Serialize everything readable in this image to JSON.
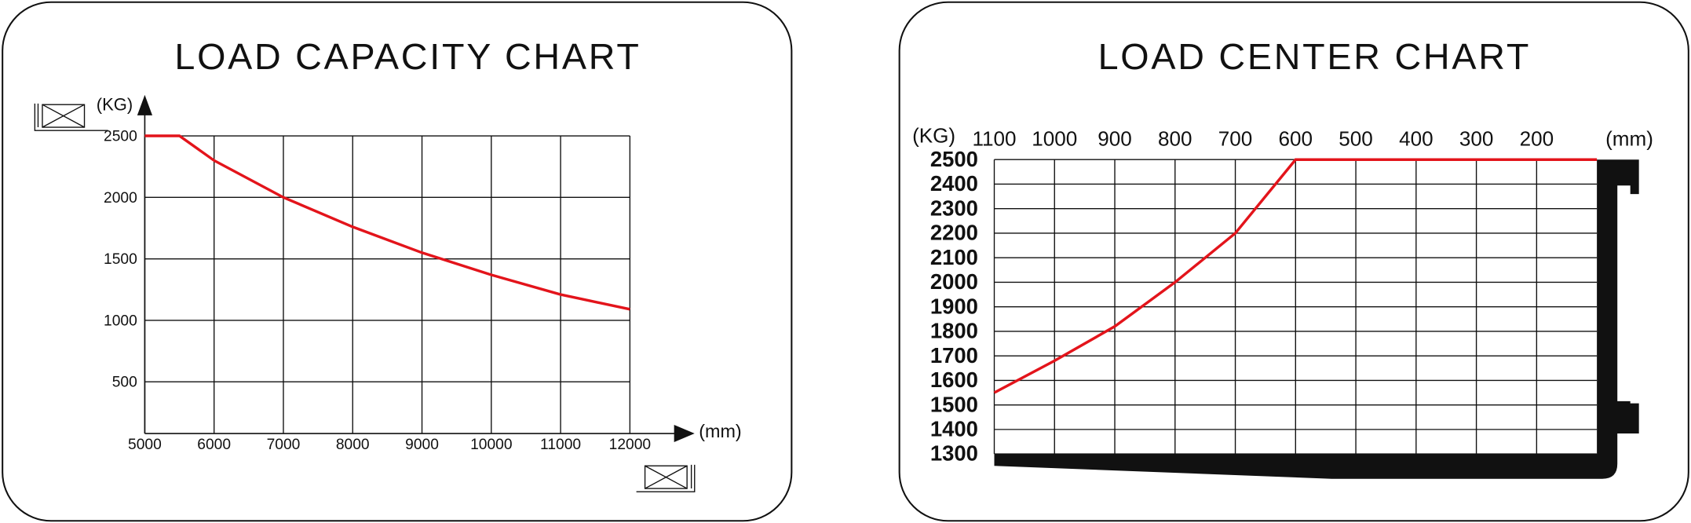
{
  "chart_data": [
    {
      "type": "line",
      "title": "LOAD CAPACITY CHART",
      "y_label": "(KG)",
      "x_label": "(mm)",
      "x": [
        5000,
        5500,
        6000,
        7000,
        8000,
        9000,
        10000,
        11000,
        12000
      ],
      "values": [
        2500,
        2500,
        2300,
        2000,
        1760,
        1550,
        1370,
        1210,
        1090
      ],
      "color": "#e3141b",
      "xlim": [
        5000,
        12000
      ],
      "ylim": [
        80,
        2500
      ],
      "xticks": [
        5000,
        6000,
        7000,
        8000,
        9000,
        10000,
        11000,
        12000
      ],
      "yticks": [
        500,
        1000,
        1500,
        2000,
        2500
      ],
      "grid": true,
      "x_axis_position": "bottom"
    },
    {
      "type": "line",
      "title": "LOAD CENTER CHART",
      "y_label": "(KG)",
      "x_label": "(mm)",
      "x": [
        1100,
        1000,
        900,
        800,
        700,
        600,
        500,
        400,
        300,
        200,
        100
      ],
      "values": [
        1550,
        1680,
        1820,
        2000,
        2200,
        2500,
        2500,
        2500,
        2500,
        2500,
        2500
      ],
      "color": "#e3141b",
      "xlim": [
        1100,
        100
      ],
      "ylim": [
        1300,
        2500
      ],
      "xticks": [
        1100,
        1000,
        900,
        800,
        700,
        600,
        500,
        400,
        300,
        200
      ],
      "yticks": [
        1300,
        1400,
        1500,
        1600,
        1700,
        1800,
        1900,
        2000,
        2100,
        2200,
        2300,
        2400,
        2500
      ],
      "grid": true,
      "x_axis_position": "top"
    }
  ]
}
